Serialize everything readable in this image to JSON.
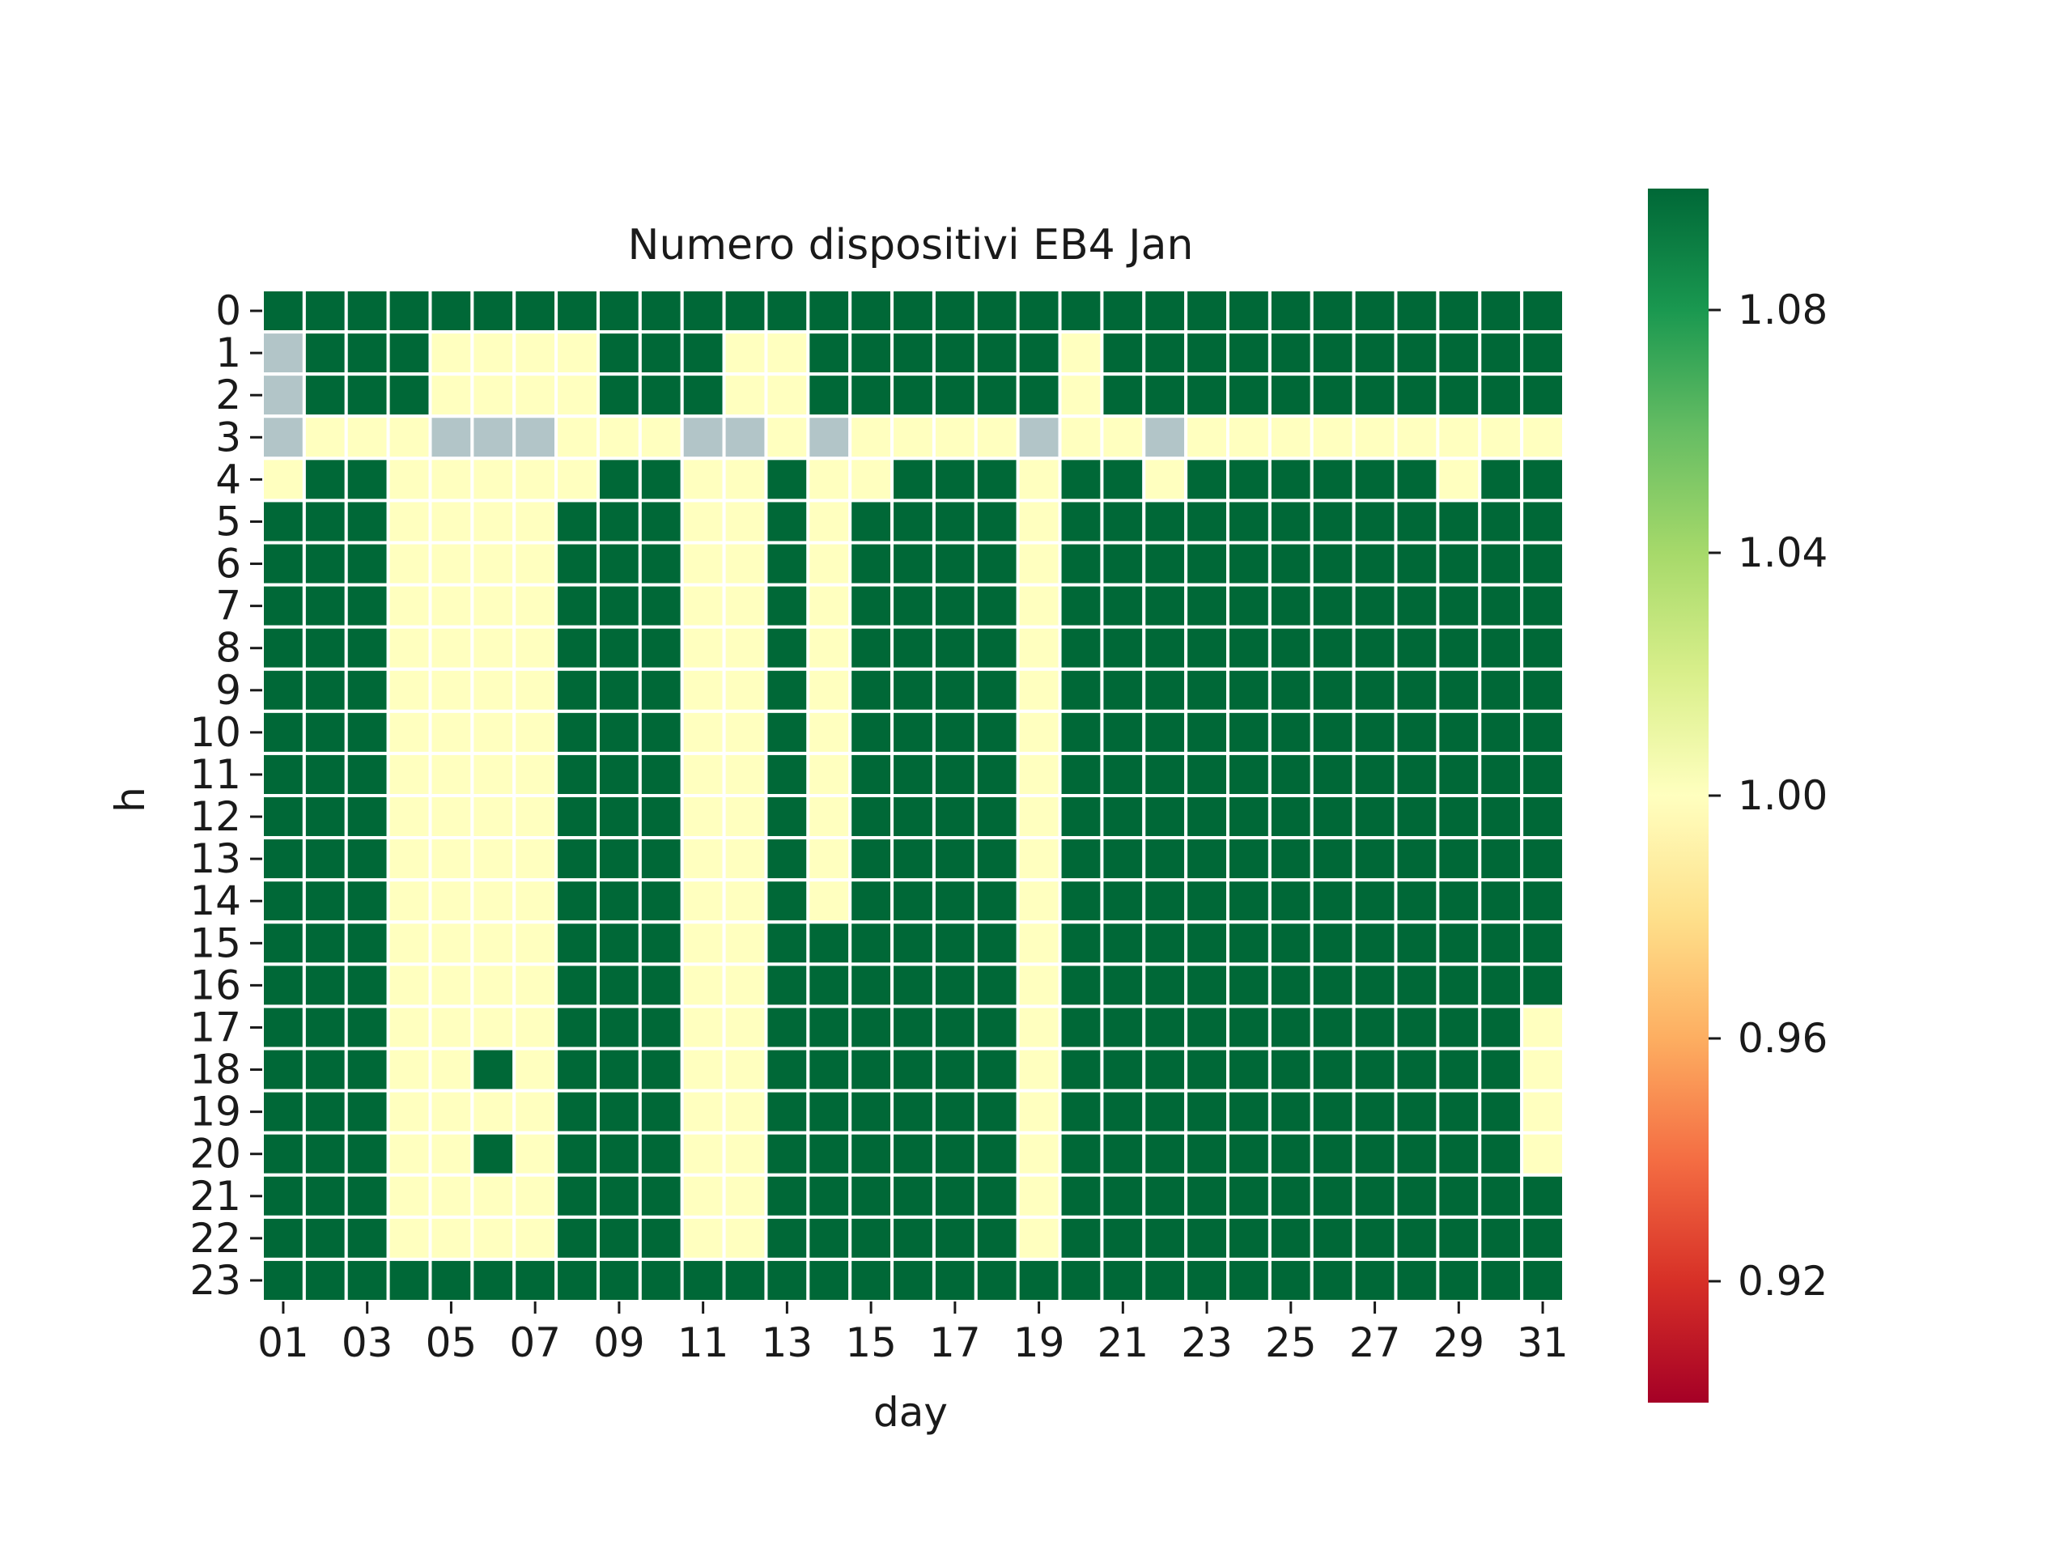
{
  "chart_data": {
    "type": "heatmap",
    "title": "Numero dispositivi EB4 Jan",
    "xlabel": "day",
    "ylabel": "h",
    "x": [
      "01",
      "02",
      "03",
      "04",
      "05",
      "06",
      "07",
      "08",
      "09",
      "10",
      "11",
      "12",
      "13",
      "14",
      "15",
      "16",
      "17",
      "18",
      "19",
      "20",
      "21",
      "22",
      "23",
      "24",
      "25",
      "26",
      "27",
      "28",
      "29",
      "30",
      "31"
    ],
    "x_ticks_shown": [
      "01",
      "03",
      "05",
      "07",
      "09",
      "11",
      "13",
      "15",
      "17",
      "19",
      "21",
      "23",
      "25",
      "27",
      "29",
      "31"
    ],
    "y": [
      "0",
      "1",
      "2",
      "3",
      "4",
      "5",
      "6",
      "7",
      "8",
      "9",
      "10",
      "11",
      "12",
      "13",
      "14",
      "15",
      "16",
      "17",
      "18",
      "19",
      "20",
      "21",
      "22",
      "23"
    ],
    "colormap": "RdYlGn",
    "vmin": 0.9,
    "vmax": 1.1,
    "missing_color": "#b2c5c8",
    "colorbar_ticks": [
      0.92,
      0.96,
      1.0,
      1.04,
      1.08
    ],
    "colorbar_tick_labels": [
      "0.92",
      "0.96",
      "1.00",
      "1.04",
      "1.08"
    ],
    "values": [
      [
        2,
        2,
        2,
        2,
        2,
        2,
        2,
        2,
        2,
        2,
        2,
        2,
        2,
        2,
        2,
        2,
        2,
        2,
        2,
        2,
        2,
        2,
        2,
        2,
        2,
        2,
        2,
        2,
        2,
        2,
        2
      ],
      [
        null,
        2,
        2,
        2,
        1,
        1,
        1,
        1,
        2,
        2,
        2,
        1,
        1,
        2,
        2,
        2,
        2,
        2,
        2,
        1,
        2,
        2,
        2,
        2,
        2,
        2,
        2,
        2,
        2,
        2,
        2
      ],
      [
        null,
        2,
        2,
        2,
        1,
        1,
        1,
        1,
        2,
        2,
        2,
        1,
        1,
        2,
        2,
        2,
        2,
        2,
        2,
        1,
        2,
        2,
        2,
        2,
        2,
        2,
        2,
        2,
        2,
        2,
        2
      ],
      [
        null,
        1,
        1,
        1,
        null,
        null,
        null,
        1,
        1,
        1,
        null,
        null,
        1,
        null,
        1,
        1,
        1,
        1,
        null,
        1,
        1,
        null,
        1,
        1,
        1,
        1,
        1,
        1,
        1,
        1,
        1
      ],
      [
        1,
        2,
        2,
        1,
        1,
        1,
        1,
        1,
        2,
        2,
        1,
        1,
        2,
        1,
        1,
        2,
        2,
        2,
        1,
        2,
        2,
        1,
        2,
        2,
        2,
        2,
        2,
        2,
        1,
        2,
        2
      ],
      [
        2,
        2,
        2,
        1,
        1,
        1,
        1,
        2,
        2,
        2,
        1,
        1,
        2,
        1,
        2,
        2,
        2,
        2,
        1,
        2,
        2,
        2,
        2,
        2,
        2,
        2,
        2,
        2,
        2,
        2,
        2
      ],
      [
        2,
        2,
        2,
        1,
        1,
        1,
        1,
        2,
        2,
        2,
        1,
        1,
        2,
        1,
        2,
        2,
        2,
        2,
        1,
        2,
        2,
        2,
        2,
        2,
        2,
        2,
        2,
        2,
        2,
        2,
        2
      ],
      [
        2,
        2,
        2,
        1,
        1,
        1,
        1,
        2,
        2,
        2,
        1,
        1,
        2,
        1,
        2,
        2,
        2,
        2,
        1,
        2,
        2,
        2,
        2,
        2,
        2,
        2,
        2,
        2,
        2,
        2,
        2
      ],
      [
        2,
        2,
        2,
        1,
        1,
        1,
        1,
        2,
        2,
        2,
        1,
        1,
        2,
        1,
        2,
        2,
        2,
        2,
        1,
        2,
        2,
        2,
        2,
        2,
        2,
        2,
        2,
        2,
        2,
        2,
        2
      ],
      [
        2,
        2,
        2,
        1,
        1,
        1,
        1,
        2,
        2,
        2,
        1,
        1,
        2,
        1,
        2,
        2,
        2,
        2,
        1,
        2,
        2,
        2,
        2,
        2,
        2,
        2,
        2,
        2,
        2,
        2,
        2
      ],
      [
        2,
        2,
        2,
        1,
        1,
        1,
        1,
        2,
        2,
        2,
        1,
        1,
        2,
        1,
        2,
        2,
        2,
        2,
        1,
        2,
        2,
        2,
        2,
        2,
        2,
        2,
        2,
        2,
        2,
        2,
        2
      ],
      [
        2,
        2,
        2,
        1,
        1,
        1,
        1,
        2,
        2,
        2,
        1,
        1,
        2,
        1,
        2,
        2,
        2,
        2,
        1,
        2,
        2,
        2,
        2,
        2,
        2,
        2,
        2,
        2,
        2,
        2,
        2
      ],
      [
        2,
        2,
        2,
        1,
        1,
        1,
        1,
        2,
        2,
        2,
        1,
        1,
        2,
        1,
        2,
        2,
        2,
        2,
        1,
        2,
        2,
        2,
        2,
        2,
        2,
        2,
        2,
        2,
        2,
        2,
        2
      ],
      [
        2,
        2,
        2,
        1,
        1,
        1,
        1,
        2,
        2,
        2,
        1,
        1,
        2,
        1,
        2,
        2,
        2,
        2,
        1,
        2,
        2,
        2,
        2,
        2,
        2,
        2,
        2,
        2,
        2,
        2,
        2
      ],
      [
        2,
        2,
        2,
        1,
        1,
        1,
        1,
        2,
        2,
        2,
        1,
        1,
        2,
        1,
        2,
        2,
        2,
        2,
        1,
        2,
        2,
        2,
        2,
        2,
        2,
        2,
        2,
        2,
        2,
        2,
        2
      ],
      [
        2,
        2,
        2,
        1,
        1,
        1,
        1,
        2,
        2,
        2,
        1,
        1,
        2,
        2,
        2,
        2,
        2,
        2,
        1,
        2,
        2,
        2,
        2,
        2,
        2,
        2,
        2,
        2,
        2,
        2,
        2
      ],
      [
        2,
        2,
        2,
        1,
        1,
        1,
        1,
        2,
        2,
        2,
        1,
        1,
        2,
        2,
        2,
        2,
        2,
        2,
        1,
        2,
        2,
        2,
        2,
        2,
        2,
        2,
        2,
        2,
        2,
        2,
        2
      ],
      [
        2,
        2,
        2,
        1,
        1,
        1,
        1,
        2,
        2,
        2,
        1,
        1,
        2,
        2,
        2,
        2,
        2,
        2,
        1,
        2,
        2,
        2,
        2,
        2,
        2,
        2,
        2,
        2,
        2,
        2,
        1
      ],
      [
        2,
        2,
        2,
        1,
        1,
        2,
        1,
        2,
        2,
        2,
        1,
        1,
        2,
        2,
        2,
        2,
        2,
        2,
        1,
        2,
        2,
        2,
        2,
        2,
        2,
        2,
        2,
        2,
        2,
        2,
        1
      ],
      [
        2,
        2,
        2,
        1,
        1,
        1,
        1,
        2,
        2,
        2,
        1,
        1,
        2,
        2,
        2,
        2,
        2,
        2,
        1,
        2,
        2,
        2,
        2,
        2,
        2,
        2,
        2,
        2,
        2,
        2,
        1
      ],
      [
        2,
        2,
        2,
        1,
        1,
        2,
        1,
        2,
        2,
        2,
        1,
        1,
        2,
        2,
        2,
        2,
        2,
        2,
        1,
        2,
        2,
        2,
        2,
        2,
        2,
        2,
        2,
        2,
        2,
        2,
        1
      ],
      [
        2,
        2,
        2,
        1,
        1,
        1,
        1,
        2,
        2,
        2,
        1,
        1,
        2,
        2,
        2,
        2,
        2,
        2,
        1,
        2,
        2,
        2,
        2,
        2,
        2,
        2,
        2,
        2,
        2,
        2,
        2
      ],
      [
        2,
        2,
        2,
        1,
        1,
        1,
        1,
        2,
        2,
        2,
        1,
        1,
        2,
        2,
        2,
        2,
        2,
        2,
        1,
        2,
        2,
        2,
        2,
        2,
        2,
        2,
        2,
        2,
        2,
        2,
        2
      ],
      [
        2,
        2,
        2,
        2,
        2,
        2,
        2,
        2,
        2,
        2,
        2,
        2,
        2,
        2,
        2,
        2,
        2,
        2,
        2,
        2,
        2,
        2,
        2,
        2,
        2,
        2,
        2,
        2,
        2,
        2,
        2
      ]
    ]
  }
}
